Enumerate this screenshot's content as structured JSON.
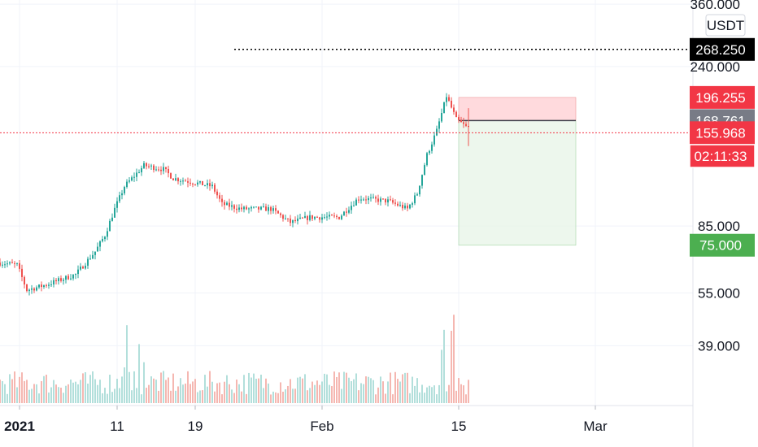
{
  "chart_data": {
    "type": "candlestick",
    "currency": "USDT",
    "price_axis": {
      "scale": "log",
      "range": [
        28,
        370
      ],
      "tick_labels": [
        {
          "value": 360,
          "label": "360.000"
        },
        {
          "value": 240,
          "label": "240.000"
        },
        {
          "value": 85,
          "label": "85.000"
        },
        {
          "value": 55,
          "label": "55.000"
        },
        {
          "value": 39,
          "label": "39.000"
        }
      ]
    },
    "time_axis": {
      "range": [
        "2020-12-30",
        "2021-03-11"
      ],
      "tick_labels": [
        {
          "date": "2021-01-01",
          "label": "2021",
          "bold": true
        },
        {
          "date": "2021-01-11",
          "label": "11"
        },
        {
          "date": "2021-01-19",
          "label": "19"
        },
        {
          "date": "2021-02-01",
          "label": "Feb"
        },
        {
          "date": "2021-02-15",
          "label": "15"
        },
        {
          "date": "2021-03-01",
          "label": "Mar"
        }
      ]
    },
    "price_anchors": [
      {
        "date": "2020-12-30",
        "price": 67
      },
      {
        "date": "2021-01-01",
        "price": 66
      },
      {
        "date": "2021-01-02",
        "price": 56
      },
      {
        "date": "2021-01-04",
        "price": 58
      },
      {
        "date": "2021-01-07",
        "price": 62
      },
      {
        "date": "2021-01-09",
        "price": 72
      },
      {
        "date": "2021-01-10",
        "price": 80
      },
      {
        "date": "2021-01-11",
        "price": 95
      },
      {
        "date": "2021-01-12",
        "price": 110
      },
      {
        "date": "2021-01-14",
        "price": 126
      },
      {
        "date": "2021-01-16",
        "price": 123
      },
      {
        "date": "2021-01-17",
        "price": 116
      },
      {
        "date": "2021-01-19",
        "price": 113
      },
      {
        "date": "2021-01-21",
        "price": 110
      },
      {
        "date": "2021-01-22",
        "price": 98
      },
      {
        "date": "2021-01-24",
        "price": 95
      },
      {
        "date": "2021-01-27",
        "price": 95
      },
      {
        "date": "2021-01-29",
        "price": 87
      },
      {
        "date": "2021-01-31",
        "price": 90
      },
      {
        "date": "2021-02-03",
        "price": 90
      },
      {
        "date": "2021-02-05",
        "price": 102
      },
      {
        "date": "2021-02-08",
        "price": 100
      },
      {
        "date": "2021-02-10",
        "price": 95
      },
      {
        "date": "2021-02-11",
        "price": 105
      },
      {
        "date": "2021-02-12",
        "price": 135
      },
      {
        "date": "2021-02-13",
        "price": 158
      },
      {
        "date": "2021-02-14",
        "price": 198
      },
      {
        "date": "2021-02-15",
        "price": 170
      },
      {
        "date": "2021-02-16",
        "price": 162
      }
    ],
    "last_candle": {
      "date": "2021-02-16",
      "high": 183,
      "low": 143,
      "close": 162
    },
    "trade_setup": {
      "type": "short",
      "start_date": "2021-02-15",
      "end_date": "2021-02-27",
      "entry": 168.761,
      "stop": 196.255,
      "target": 75.0
    },
    "markers": [
      {
        "name": "target-level",
        "value": 268.25,
        "label": "268.250",
        "color": "#000000",
        "text_color": "#ffffff",
        "line": "dotted",
        "line_from_date": "2021-01-23"
      },
      {
        "name": "stop",
        "value": 196.255,
        "label": "196.255",
        "color": "#f23645",
        "text_color": "#ffffff"
      },
      {
        "name": "entry",
        "value": 168.761,
        "label": "168.761",
        "color": "#787b86",
        "text_color": "#ffffff"
      },
      {
        "name": "last-price",
        "value": 155.968,
        "label": "155.968",
        "color": "#f23645",
        "text_color": "#ffffff",
        "line": "dotted-red"
      },
      {
        "name": "countdown",
        "value": 134.0,
        "label": "02:11:33",
        "color": "#f23645",
        "text_color": "#ffffff",
        "bordered": true
      },
      {
        "name": "take-profit",
        "value": 75.0,
        "label": "75.000",
        "color": "#4caf50",
        "text_color": "#ffffff"
      }
    ],
    "colors": {
      "up": "#26a69a",
      "down": "#ef5350",
      "vol_up": "#b2dfdb",
      "vol_down": "#f5b7b1",
      "stop_zone": "#ffcdd2",
      "profit_zone": "#e8f5e9"
    },
    "volume_spikes": [
      {
        "date": "2021-01-11",
        "level": 0.55
      },
      {
        "date": "2021-01-12",
        "level": 0.8
      },
      {
        "date": "2021-01-13",
        "level": 0.6
      },
      {
        "date": "2021-02-13",
        "level": 0.8
      },
      {
        "date": "2021-02-14",
        "level": 1.0
      },
      {
        "date": "2021-02-15",
        "level": 1.0
      }
    ]
  }
}
